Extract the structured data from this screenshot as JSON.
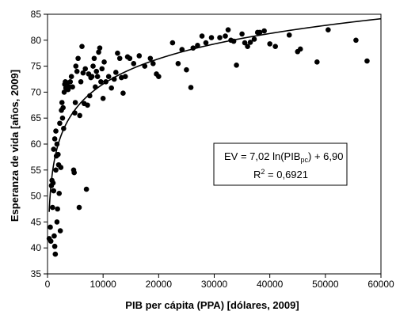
{
  "chart_data": {
    "type": "scatter",
    "xlabel": "PIB per cápita (PPA) [dólares, 2009]",
    "ylabel": "Esperanza de vida [años, 2009]",
    "xlim": [
      0,
      60000
    ],
    "ylim": [
      35,
      85
    ],
    "x_ticks": [
      "0",
      "10000",
      "20000",
      "30000",
      "40000",
      "50000",
      "60000"
    ],
    "y_ticks": [
      "35",
      "40",
      "45",
      "50",
      "55",
      "60",
      "65",
      "70",
      "75",
      "80",
      "85"
    ],
    "grid": false,
    "legend": "none",
    "colors": {
      "points": "#000000",
      "trend": "#000000"
    },
    "trendline": {
      "type": "log",
      "a": 7.02,
      "b": 6.9,
      "equation_main": "EV = 7,02 ln(PIB",
      "equation_sub": "pc",
      "equation_tail": ") + 6,90",
      "r2_label": "R",
      "r2_sup": "2",
      "r2_value": " = 0,6921"
    },
    "points": [
      [
        300,
        41.8
      ],
      [
        500,
        44
      ],
      [
        600,
        41.3
      ],
      [
        700,
        52
      ],
      [
        800,
        53
      ],
      [
        900,
        47.8
      ],
      [
        1000,
        52.5
      ],
      [
        1100,
        51
      ],
      [
        1200,
        42.3
      ],
      [
        1300,
        40.3
      ],
      [
        1400,
        38.8
      ],
      [
        1500,
        55
      ],
      [
        1600,
        57.7
      ],
      [
        1700,
        45
      ],
      [
        1800,
        47.5
      ],
      [
        1100,
        59
      ],
      [
        1300,
        61
      ],
      [
        1500,
        62.5
      ],
      [
        1700,
        60
      ],
      [
        1900,
        58
      ],
      [
        2000,
        56
      ],
      [
        2100,
        50.5
      ],
      [
        2200,
        64
      ],
      [
        2300,
        43.3
      ],
      [
        2400,
        55.5
      ],
      [
        2500,
        66.5
      ],
      [
        2600,
        68
      ],
      [
        2700,
        65
      ],
      [
        2800,
        67
      ],
      [
        2900,
        63
      ],
      [
        3000,
        70
      ],
      [
        3100,
        71.5
      ],
      [
        3200,
        72
      ],
      [
        3300,
        70.8
      ],
      [
        3500,
        71.8
      ],
      [
        3700,
        70.5
      ],
      [
        3900,
        71
      ],
      [
        4100,
        72
      ],
      [
        4300,
        73
      ],
      [
        4500,
        71
      ],
      [
        4700,
        55
      ],
      [
        4800,
        54.5
      ],
      [
        4900,
        66
      ],
      [
        5000,
        68
      ],
      [
        5100,
        75
      ],
      [
        5300,
        74
      ],
      [
        5500,
        76.5
      ],
      [
        5700,
        47.8
      ],
      [
        5800,
        65.5
      ],
      [
        6000,
        72
      ],
      [
        6200,
        78.8
      ],
      [
        6400,
        73.7
      ],
      [
        6600,
        67.8
      ],
      [
        6800,
        74.5
      ],
      [
        7000,
        51.3
      ],
      [
        7200,
        67.5
      ],
      [
        7400,
        73.5
      ],
      [
        7600,
        69.3
      ],
      [
        7800,
        72.8
      ],
      [
        8000,
        73
      ],
      [
        8200,
        75
      ],
      [
        8400,
        76.5
      ],
      [
        8600,
        71
      ],
      [
        8800,
        74
      ],
      [
        9000,
        73
      ],
      [
        9200,
        77.7
      ],
      [
        9400,
        78.5
      ],
      [
        9600,
        72
      ],
      [
        9800,
        74.5
      ],
      [
        10000,
        68.8
      ],
      [
        10200,
        75.8
      ],
      [
        10500,
        72
      ],
      [
        11000,
        73
      ],
      [
        11500,
        70.8
      ],
      [
        12000,
        72.5
      ],
      [
        12300,
        73.8
      ],
      [
        12600,
        77.5
      ],
      [
        13000,
        76.5
      ],
      [
        13300,
        72.8
      ],
      [
        13600,
        69.8
      ],
      [
        14000,
        73
      ],
      [
        14400,
        76.8
      ],
      [
        14800,
        76.5
      ],
      [
        15500,
        75.5
      ],
      [
        16500,
        77
      ],
      [
        17500,
        75
      ],
      [
        18500,
        76.5
      ],
      [
        19000,
        75.5
      ],
      [
        19600,
        73.5
      ],
      [
        20000,
        73
      ],
      [
        22500,
        79.5
      ],
      [
        23500,
        75.5
      ],
      [
        24200,
        78.2
      ],
      [
        25000,
        74.3
      ],
      [
        25800,
        70.9
      ],
      [
        26200,
        78.5
      ],
      [
        27000,
        79
      ],
      [
        27800,
        80.8
      ],
      [
        28500,
        79.5
      ],
      [
        29500,
        80.5
      ],
      [
        31000,
        80.5
      ],
      [
        32000,
        80.8
      ],
      [
        32500,
        82
      ],
      [
        33000,
        80
      ],
      [
        33500,
        79.8
      ],
      [
        34000,
        75.2
      ],
      [
        35000,
        81.2
      ],
      [
        35500,
        79.5
      ],
      [
        36000,
        78.8
      ],
      [
        36500,
        79.6
      ],
      [
        37200,
        80.2
      ],
      [
        37800,
        81.5
      ],
      [
        38200,
        81.5
      ],
      [
        39000,
        81.8
      ],
      [
        40000,
        79.3
      ],
      [
        41000,
        78.8
      ],
      [
        43500,
        81
      ],
      [
        45000,
        77.8
      ],
      [
        45500,
        78.3
      ],
      [
        48500,
        75.8
      ],
      [
        50500,
        82
      ],
      [
        55500,
        80
      ],
      [
        57500,
        76
      ]
    ]
  }
}
